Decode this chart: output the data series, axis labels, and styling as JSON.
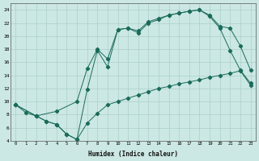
{
  "xlabel": "Humidex (Indice chaleur)",
  "xlim": [
    -0.5,
    23.5
  ],
  "ylim": [
    4,
    25
  ],
  "yticks": [
    4,
    6,
    8,
    10,
    12,
    14,
    16,
    18,
    20,
    22,
    24
  ],
  "xticks": [
    0,
    1,
    2,
    3,
    4,
    5,
    6,
    7,
    8,
    9,
    10,
    11,
    12,
    13,
    14,
    15,
    16,
    17,
    18,
    19,
    20,
    21,
    22,
    23
  ],
  "bg_color": "#cce8e4",
  "grid_color": "#aacfca",
  "line_color": "#1a6b5a",
  "line1_x": [
    0,
    1,
    2,
    3,
    4,
    5,
    6,
    7,
    8,
    9,
    10,
    11,
    12,
    13,
    14,
    15,
    16,
    17,
    18,
    19,
    20,
    21,
    22,
    23
  ],
  "line1_y": [
    9.5,
    8.3,
    7.8,
    7.0,
    6.5,
    5.0,
    4.2,
    6.7,
    8.2,
    9.5,
    10.0,
    10.5,
    11.0,
    11.5,
    12.0,
    12.3,
    12.7,
    13.0,
    13.3,
    13.7,
    14.0,
    14.3,
    14.7,
    12.5
  ],
  "line2_x": [
    0,
    2,
    3,
    4,
    5,
    6,
    7,
    8,
    9,
    10,
    11,
    12,
    13,
    14,
    15,
    16,
    17,
    18,
    19,
    20,
    21,
    22,
    23
  ],
  "line2_y": [
    9.5,
    7.8,
    7.0,
    6.5,
    5.0,
    4.2,
    11.8,
    17.8,
    15.3,
    21.0,
    21.2,
    20.5,
    22.0,
    22.5,
    23.2,
    23.5,
    23.8,
    24.0,
    23.0,
    21.2,
    17.8,
    14.8,
    12.8
  ],
  "line3_x": [
    0,
    2,
    4,
    6,
    7,
    8,
    9,
    10,
    11,
    12,
    13,
    14,
    15,
    16,
    17,
    18,
    19,
    20,
    21,
    22,
    23
  ],
  "line3_y": [
    9.5,
    7.8,
    8.5,
    10.0,
    15.0,
    18.0,
    16.5,
    21.0,
    21.2,
    20.8,
    22.2,
    22.7,
    23.2,
    23.5,
    23.8,
    24.0,
    23.2,
    21.5,
    21.2,
    18.5,
    14.8
  ]
}
